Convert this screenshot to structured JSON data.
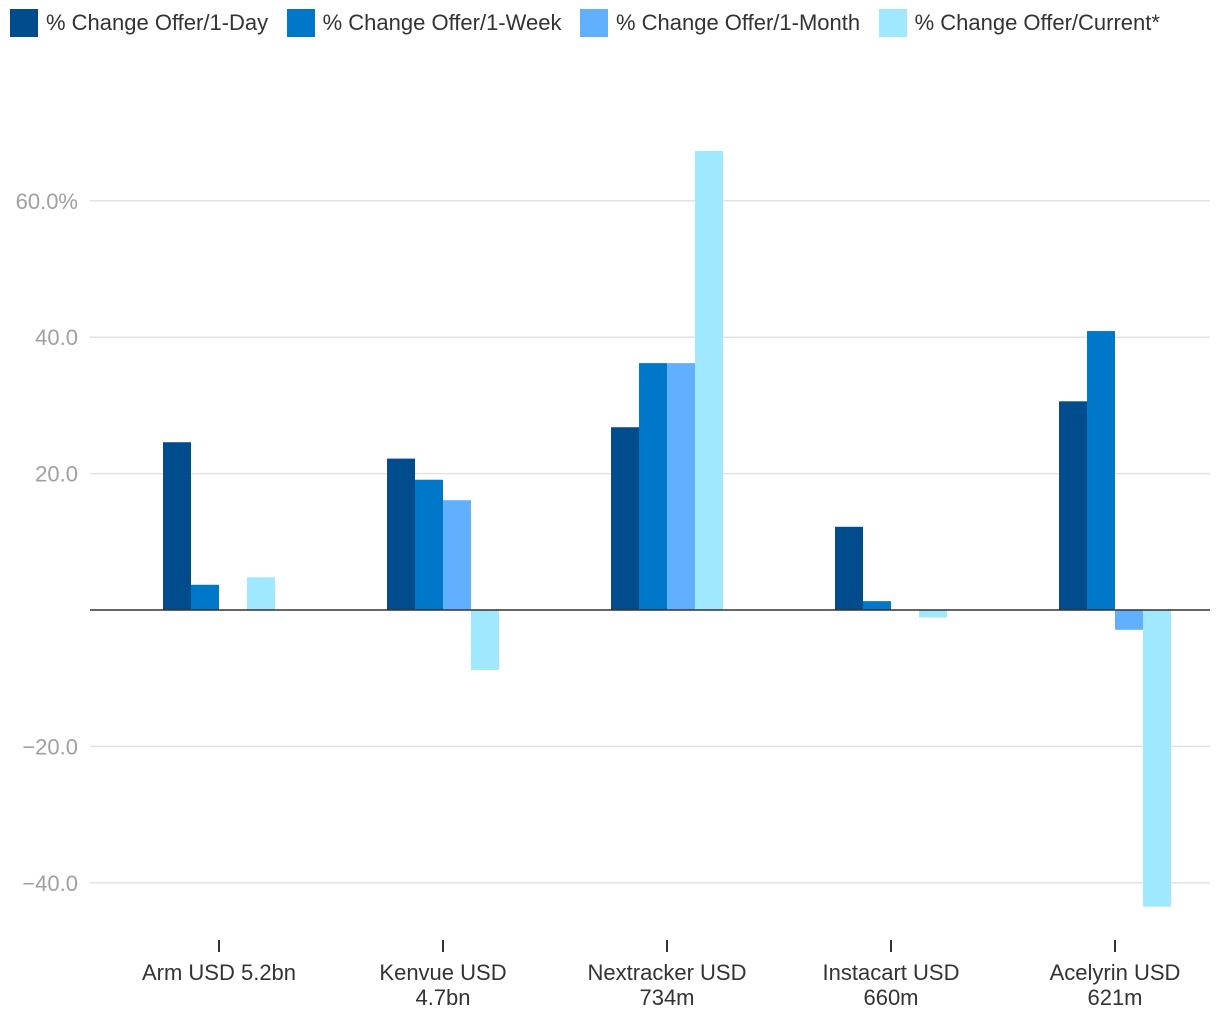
{
  "chart_data": {
    "type": "bar",
    "categories": [
      [
        "Arm USD 5.2bn"
      ],
      [
        "Kenvue USD",
        "4.7bn"
      ],
      [
        "Nextracker USD",
        "734m"
      ],
      [
        "Instacart USD",
        "660m"
      ],
      [
        "Acelyrin USD",
        "621m"
      ]
    ],
    "series": [
      {
        "name": "% Change Offer/1-Day",
        "color": "#004c8c",
        "values": [
          24.6,
          22.2,
          26.8,
          12.2,
          30.6
        ]
      },
      {
        "name": "% Change Offer/1-Week",
        "color": "#0077c8",
        "values": [
          3.7,
          19.1,
          36.2,
          1.3,
          40.9
        ]
      },
      {
        "name": "% Change Offer/1-Month",
        "color": "#60b0ff",
        "values": [
          0,
          16.1,
          36.2,
          0,
          -2.9
        ]
      },
      {
        "name": "% Change Offer/Current*",
        "color": "#9fe8ff",
        "values": [
          4.8,
          -8.8,
          67.3,
          -1.1,
          -43.5
        ]
      }
    ],
    "y_ticks": [
      {
        "value": 60,
        "label": "60.0%"
      },
      {
        "value": 40,
        "label": "40.0"
      },
      {
        "value": 20,
        "label": "20.0"
      },
      {
        "value": -20,
        "label": "−20.0"
      },
      {
        "value": -40,
        "label": "−40.0"
      }
    ],
    "ylim": [
      -47,
      72
    ],
    "grid": true,
    "legend_position": "top-left"
  }
}
